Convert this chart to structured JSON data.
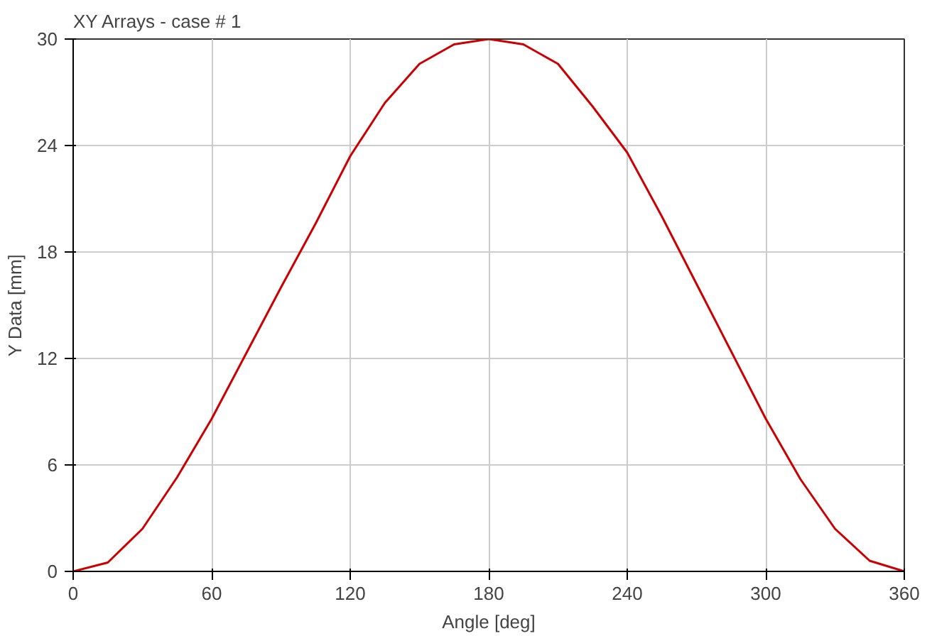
{
  "chart_data": {
    "type": "line",
    "title": "XY Arrays - case # 1",
    "xlabel": "Angle [deg]",
    "ylabel": "Y Data [mm]",
    "x": [
      0,
      15,
      30,
      45,
      60,
      75,
      90,
      105,
      120,
      135,
      150,
      165,
      180,
      195,
      210,
      225,
      240,
      255,
      270,
      285,
      300,
      315,
      330,
      345,
      360
    ],
    "series": [
      {
        "color": "#cc0000",
        "values": [
          0,
          0.5,
          2.4,
          5.3,
          8.6,
          12.3,
          16,
          19.6,
          23.4,
          26.4,
          28.6,
          29.7,
          30,
          29.7,
          28.6,
          26.2,
          23.6,
          20,
          16.2,
          12.4,
          8.6,
          5.2,
          2.4,
          0.6,
          0
        ]
      }
    ],
    "xlim": [
      0,
      360
    ],
    "ylim": [
      0,
      30
    ],
    "xticks": [
      0,
      60,
      120,
      180,
      240,
      300,
      360
    ],
    "yticks": [
      0,
      6,
      12,
      18,
      24,
      30
    ],
    "grid": true,
    "marker": "none",
    "line_style": "solid"
  }
}
